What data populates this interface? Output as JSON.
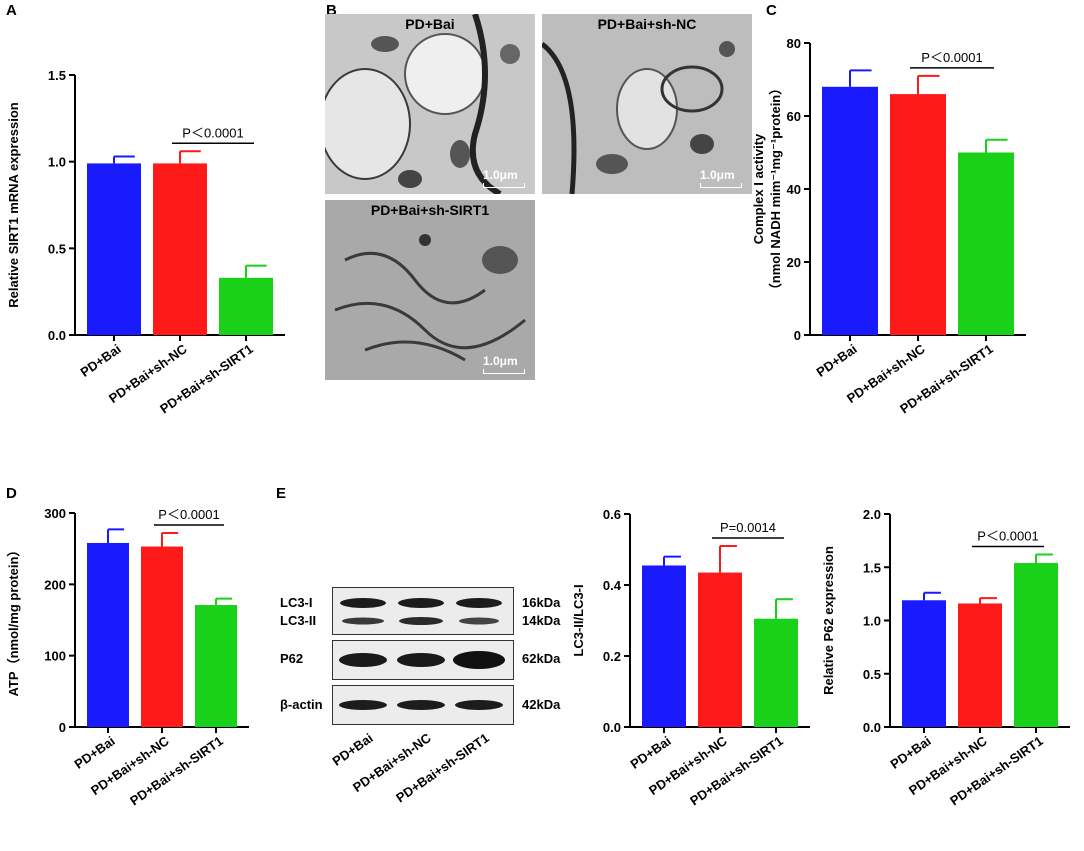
{
  "colors": {
    "blue": "#1a1aff",
    "red": "#ff1a1a",
    "green": "#1ad11a"
  },
  "panel_letters": [
    "A",
    "B",
    "C",
    "D",
    "E"
  ],
  "chart_data": [
    {
      "id": "A",
      "type": "bar",
      "categories": [
        "PD+Bai",
        "PD+Bai+sh-NC",
        "PD+Bai+sh-SIRT1"
      ],
      "values": [
        0.99,
        0.99,
        0.33
      ],
      "errors": [
        0.04,
        0.07,
        0.07
      ],
      "ylabel": "Relative  SIRT1 mRNA expression",
      "ylim": [
        0,
        1.5
      ],
      "yticks": [
        "0.0",
        "0.5",
        "1.0",
        "1.5"
      ],
      "yticks_values": [
        0,
        0.5,
        1.0,
        1.5
      ],
      "annotation": "P＜0.0001"
    },
    {
      "id": "C",
      "type": "bar",
      "categories": [
        "PD+Bai",
        "PD+Bai+sh-NC",
        "PD+Bai+sh-SIRT1"
      ],
      "values": [
        68,
        66,
        50
      ],
      "errors": [
        4.5,
        5,
        3.5
      ],
      "ylabel_lines": [
        "Complex I activity",
        "（nmol NADH mim⁻¹mg⁻¹protein）"
      ],
      "ylim": [
        0,
        80
      ],
      "yticks": [
        "0",
        "20",
        "40",
        "60",
        "80"
      ],
      "yticks_values": [
        0,
        20,
        40,
        60,
        80
      ],
      "annotation": "P＜0.0001"
    },
    {
      "id": "D",
      "type": "bar",
      "categories": [
        "PD+Bai",
        "PD+Bai+sh-NC",
        "PD+Bai+sh-SIRT1"
      ],
      "values": [
        258,
        253,
        171
      ],
      "errors": [
        19,
        19,
        9
      ],
      "ylabel": "ATP（nmol/mg protein）",
      "ylim": [
        0,
        300
      ],
      "yticks": [
        "0",
        "100",
        "200",
        "300"
      ],
      "yticks_values": [
        0,
        100,
        200,
        300
      ],
      "annotation": "P＜0.0001"
    },
    {
      "id": "E2",
      "type": "bar",
      "categories": [
        "PD+Bai",
        "PD+Bai+sh-NC",
        "PD+Bai+sh-SIRT1"
      ],
      "values": [
        0.455,
        0.435,
        0.305
      ],
      "errors": [
        0.025,
        0.075,
        0.055
      ],
      "ylabel": "LC3-II/LC3-I",
      "ylim": [
        0,
        0.6
      ],
      "yticks": [
        "0.0",
        "0.2",
        "0.4",
        "0.6"
      ],
      "yticks_values": [
        0,
        0.2,
        0.4,
        0.6
      ],
      "annotation": "P=0.0014"
    },
    {
      "id": "E3",
      "type": "bar",
      "categories": [
        "PD+Bai",
        "PD+Bai+sh-NC",
        "PD+Bai+sh-SIRT1"
      ],
      "values": [
        1.19,
        1.16,
        1.54
      ],
      "errors": [
        0.07,
        0.05,
        0.08
      ],
      "ylabel": "Relative P62 expression",
      "ylim": [
        0,
        2.0
      ],
      "yticks": [
        "0.0",
        "0.5",
        "1.0",
        "1.5",
        "2.0"
      ],
      "yticks_values": [
        0,
        0.5,
        1.0,
        1.5,
        2.0
      ],
      "annotation": "P＜0.0001"
    }
  ],
  "micrographs": [
    {
      "title": "PD+Bai",
      "scale": "1.0μm"
    },
    {
      "title": "PD+Bai+sh-NC",
      "scale": "1.0μm"
    },
    {
      "title": "PD+Bai+sh-SIRT1",
      "scale": "1.0μm"
    }
  ],
  "blot": {
    "rows": [
      {
        "labels": [
          "LC3-I",
          "LC3-II"
        ],
        "kda": [
          "16kDa",
          "14kDa"
        ]
      },
      {
        "labels": [
          "P62"
        ],
        "kda": [
          "62kDa"
        ]
      },
      {
        "labels": [
          "β-actin"
        ],
        "kda": [
          "42kDa"
        ]
      }
    ],
    "lanes": [
      "PD+Bai",
      "PD+Bai+sh-NC",
      "PD+Bai+sh-SIRT1"
    ]
  }
}
